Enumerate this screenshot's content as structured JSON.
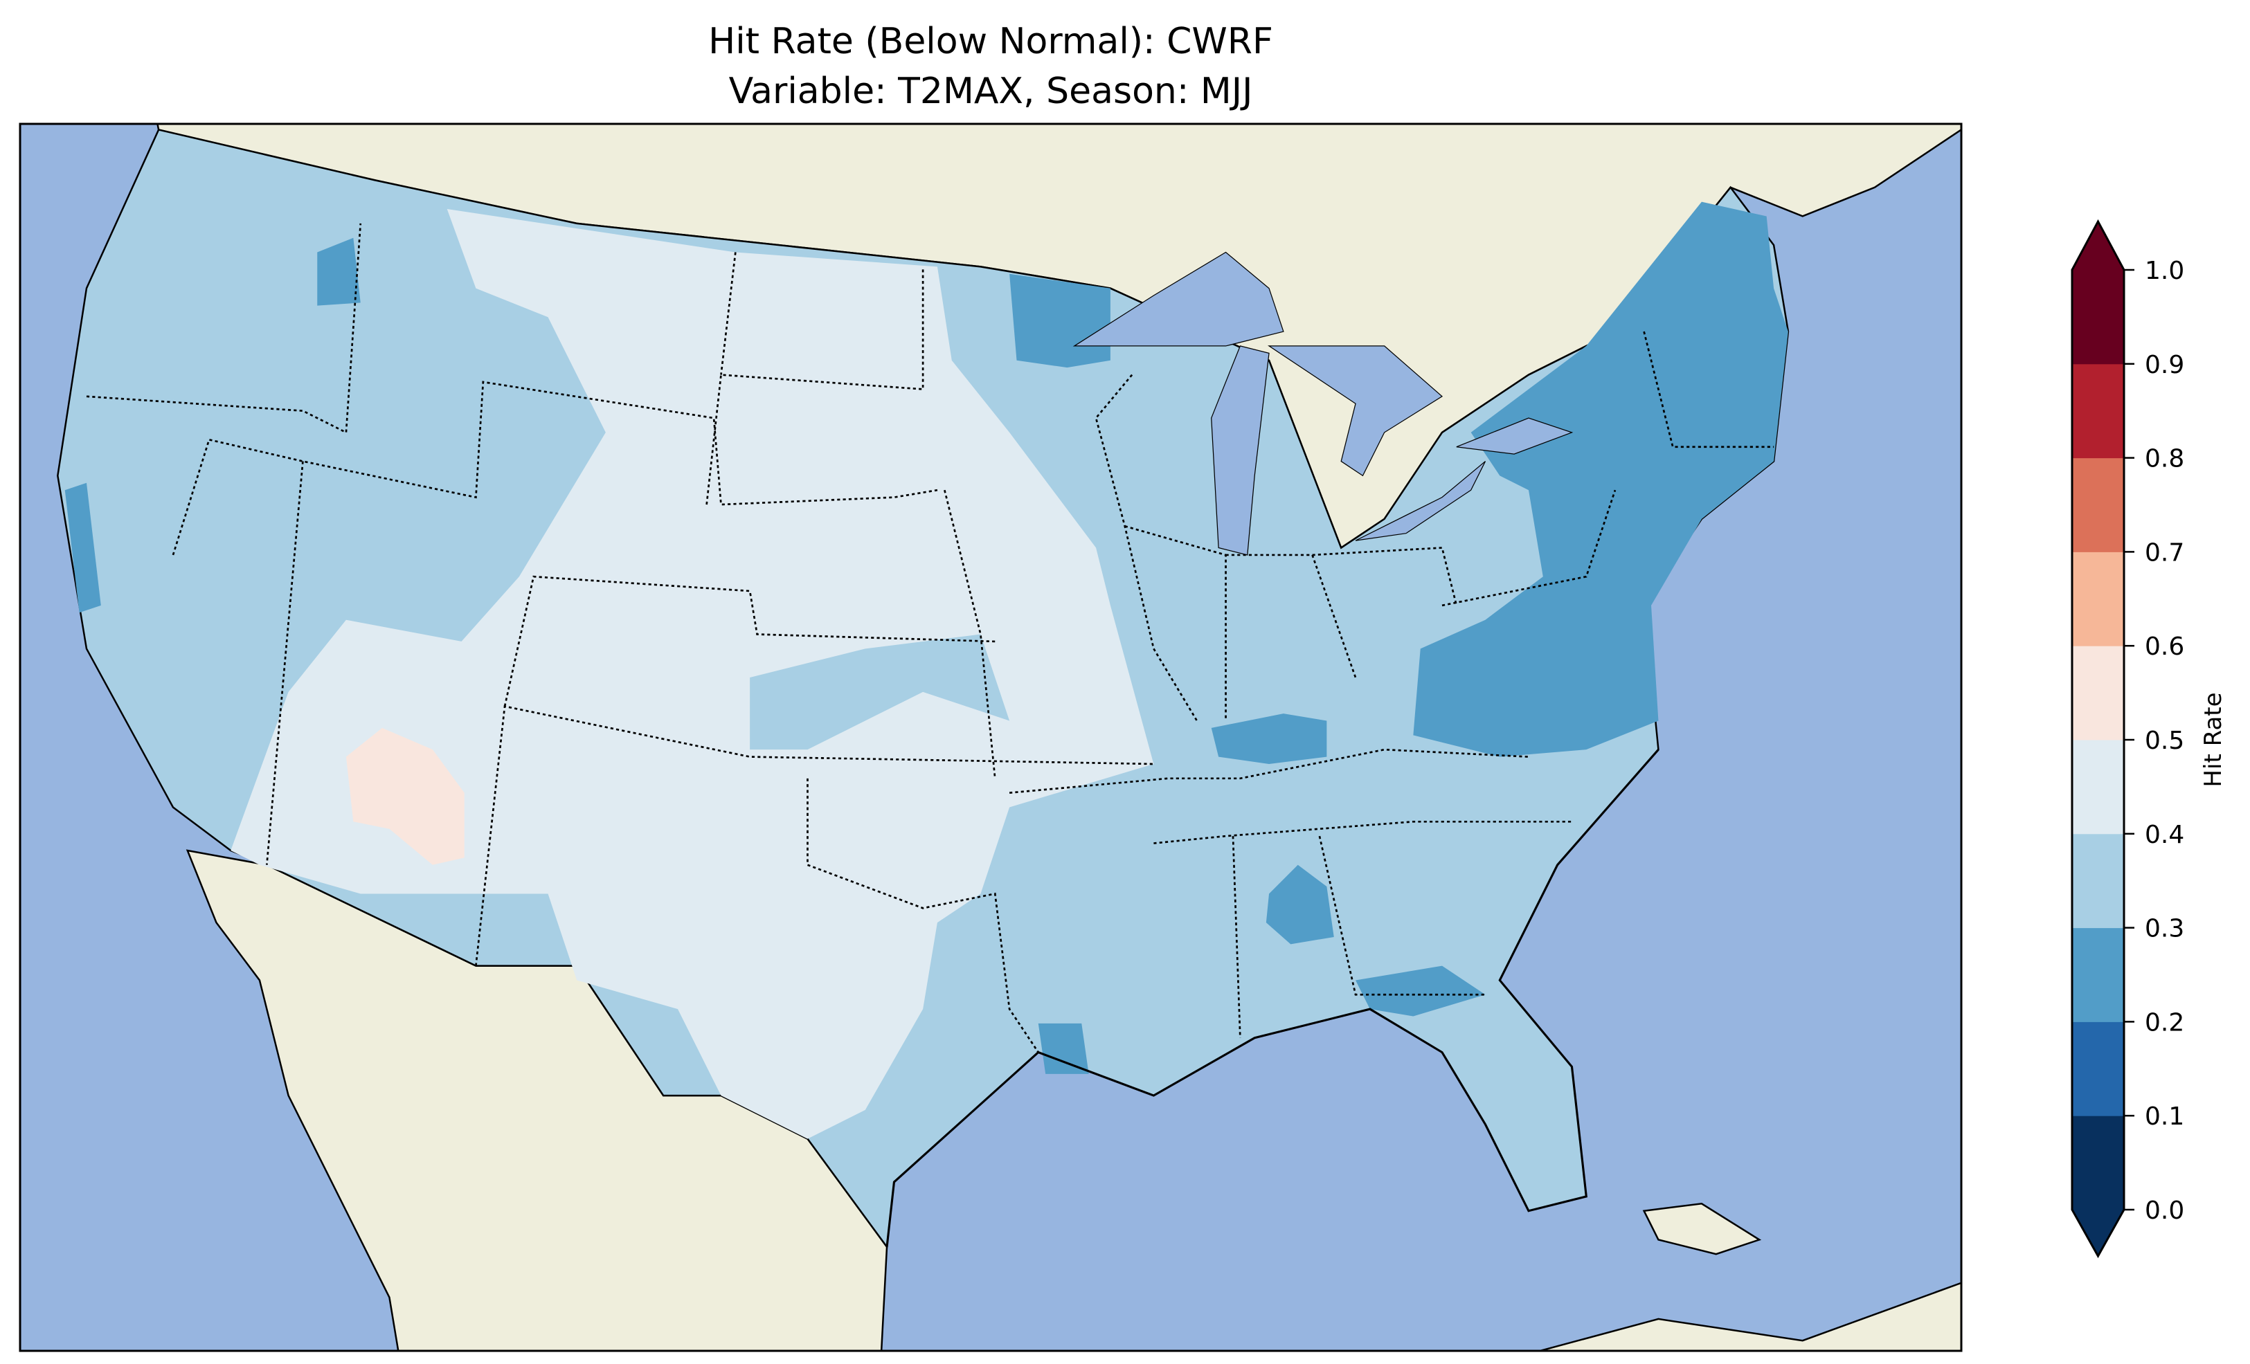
{
  "title": "Hit Rate (Below Normal): CWRF",
  "subtitle": "Variable: T2MAX, Season: MJJ",
  "colors": {
    "ocean": "#97b5e0",
    "land": "#efeedc",
    "lakes": "#97b5e0"
  },
  "chart_data": {
    "type": "heatmap",
    "title": "Hit Rate (Below Normal): CWRF\nVariable: T2MAX, Season: MJJ",
    "variable": "T2MAX",
    "season": "MJJ",
    "model": "CWRF",
    "colorbar": {
      "label": "Hit Rate",
      "range": [
        0.0,
        1.0
      ],
      "extend": "both",
      "ticks": [
        "0.0",
        "0.1",
        "0.2",
        "0.3",
        "0.4",
        "0.5",
        "0.6",
        "0.7",
        "0.8",
        "0.9",
        "1.0"
      ],
      "levels": [
        {
          "from": 0.0,
          "to": 0.1,
          "color": "#08305e"
        },
        {
          "from": 0.1,
          "to": 0.2,
          "color": "#2467ab"
        },
        {
          "from": 0.2,
          "to": 0.3,
          "color": "#529dc8"
        },
        {
          "from": 0.3,
          "to": 0.4,
          "color": "#a8cfe4"
        },
        {
          "from": 0.4,
          "to": 0.5,
          "color": "#e0ebf2"
        },
        {
          "from": 0.5,
          "to": 0.6,
          "color": "#f9e6de"
        },
        {
          "from": 0.6,
          "to": 0.7,
          "color": "#f6b798"
        },
        {
          "from": 0.7,
          "to": 0.8,
          "color": "#dc7159"
        },
        {
          "from": 0.8,
          "to": 0.9,
          "color": "#b2202e"
        },
        {
          "from": 0.9,
          "to": 1.0,
          "color": "#67001f"
        }
      ]
    },
    "regions": [
      {
        "name": "Rocky Mountains / Great Plains / Texas",
        "range": "0.4-0.5"
      },
      {
        "name": "West Coast / Midwest / Southeast",
        "range": "0.3-0.4"
      },
      {
        "name": "Northeast / Mid-Atlantic / Virginia",
        "range": "0.2-0.3"
      },
      {
        "name": "Central Arizona",
        "range": "0.5-0.6"
      }
    ]
  }
}
